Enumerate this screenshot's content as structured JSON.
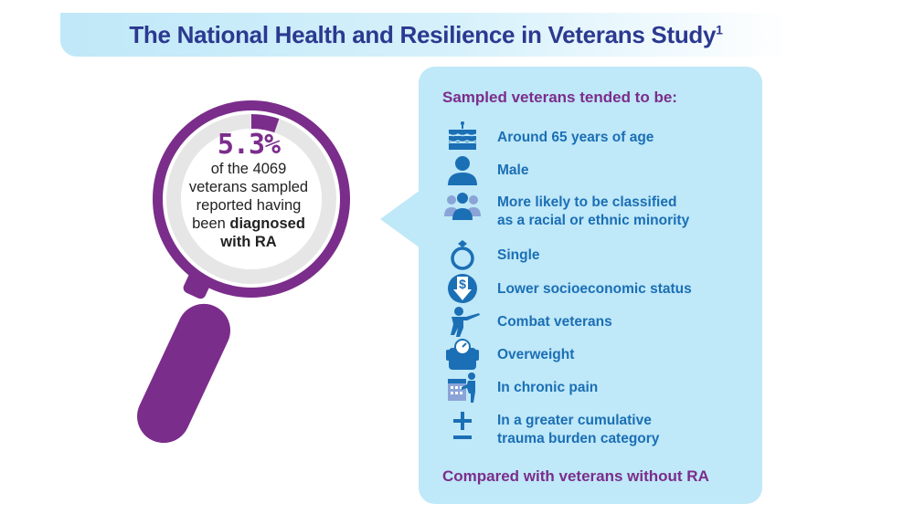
{
  "header": {
    "title": "The National Health and Resilience in Veterans Study",
    "superscript": "1"
  },
  "stat": {
    "percent": "5.3%",
    "line1": "of the 4069",
    "line2": "veterans sampled",
    "line3": "reported having",
    "line4_prefix": "been ",
    "line4_bold": "diagnosed",
    "line5_bold": "with RA",
    "ring_fraction": 0.053
  },
  "panel": {
    "heading": "Sampled veterans tended to be:",
    "footer": "Compared with veterans without RA",
    "items": [
      {
        "icon": "birthday-cake-icon",
        "label": "Around 65 years of age"
      },
      {
        "icon": "male-person-icon",
        "label": "Male"
      },
      {
        "icon": "group-people-icon",
        "label_line1": "More likely to be classified",
        "label_line2": "as a racial or ethnic minority"
      },
      {
        "icon": "ring-icon",
        "label": "Single"
      },
      {
        "icon": "dollar-down-icon",
        "label": "Lower socioeconomic status"
      },
      {
        "icon": "soldier-icon",
        "label": "Combat veterans"
      },
      {
        "icon": "scale-icon",
        "label": "Overweight"
      },
      {
        "icon": "person-calendar-icon",
        "label": "In chronic pain"
      },
      {
        "icon": "plus-minus-icon",
        "label_line1": "In a greater cumulative",
        "label_line2": "trauma burden category"
      }
    ]
  },
  "colors": {
    "title": "#2b3990",
    "purple": "#7b2d8b",
    "panel_bg": "#bfe8f8",
    "item_blue": "#1b6fb5",
    "ring_grey": "#e6e6e6"
  }
}
